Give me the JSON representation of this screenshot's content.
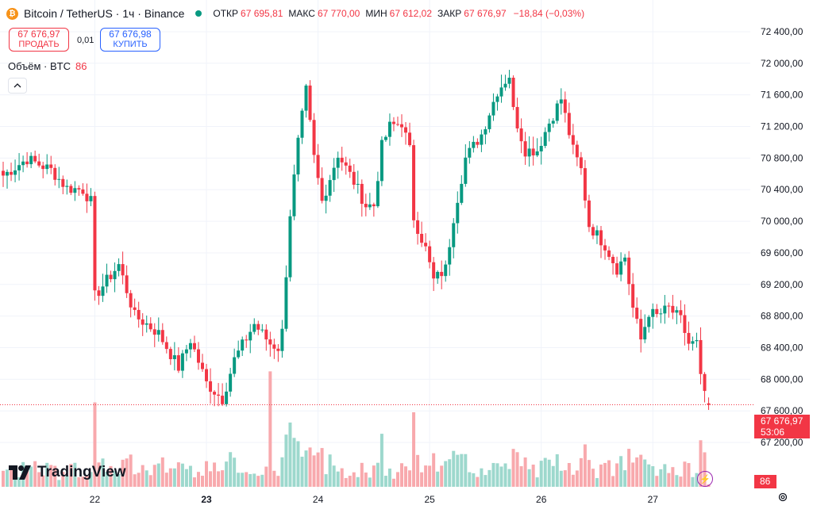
{
  "header": {
    "coin_symbol": "₿",
    "title": "Bitcoin / TetherUS · 1ч · Binance",
    "open_label": "ОТКР",
    "open": "67 695,81",
    "high_label": "МАКС",
    "high": "67 770,00",
    "low_label": "МИН",
    "low": "67 612,02",
    "close_label": "ЗАКР",
    "close": "67 676,97",
    "change": "−18,84 (−0,03%)"
  },
  "trade": {
    "sell_price": "67 676,97",
    "sell_label": "ПРОДАТЬ",
    "spread": "0,01",
    "buy_price": "67 676,98",
    "buy_label": "КУПИТЬ"
  },
  "volume_indicator": {
    "label": "Объём · BTC",
    "value": "86"
  },
  "brand": {
    "name": "TradingView"
  },
  "price_badge": {
    "price": "67 676,97",
    "countdown": "53:06"
  },
  "volume_badge": "86",
  "colors": {
    "up": "#089981",
    "down": "#f23645",
    "up_vol": "#9dd8cd",
    "down_vol": "#f8a9ad",
    "grid": "#f0f3fa"
  },
  "icons": {
    "collapse": "chevron-up-icon",
    "flash": "lightning-icon",
    "settings": "gear-icon"
  },
  "chart_data": {
    "type": "candlestick",
    "timeframe": "1h",
    "yaxis_ticks": [
      67200,
      67600,
      68000,
      68400,
      68800,
      69200,
      69600,
      70000,
      70400,
      70800,
      71200,
      71600,
      72000,
      72400
    ],
    "yaxis_tick_labels": [
      "67 200,00",
      "67 600,00",
      "68 000,00",
      "68 400,00",
      "68 800,00",
      "69 200,00",
      "69 600,00",
      "70 000,00",
      "70 400,00",
      "70 800,00",
      "71 200,00",
      "71 600,00",
      "72 000,00",
      "72 400,00"
    ],
    "ylim": [
      66950,
      72560
    ],
    "xaxis_labels": [
      "22",
      "23",
      "24",
      "25",
      "26",
      "27"
    ],
    "xaxis_label_bold": [
      false,
      true,
      false,
      false,
      false,
      false
    ],
    "waypoints": [
      [
        0,
        70580
      ],
      [
        6,
        70790
      ],
      [
        12,
        70650
      ],
      [
        16,
        70420
      ],
      [
        20,
        70400
      ],
      [
        22,
        70250
      ],
      [
        23,
        69050
      ],
      [
        26,
        69250
      ],
      [
        29,
        69450
      ],
      [
        33,
        68800
      ],
      [
        36,
        68700
      ],
      [
        39,
        68580
      ],
      [
        44,
        68150
      ],
      [
        47,
        68500
      ],
      [
        51,
        67950
      ],
      [
        55,
        67750
      ],
      [
        58,
        68250
      ],
      [
        63,
        68700
      ],
      [
        67,
        68450
      ],
      [
        69,
        68400
      ],
      [
        70,
        68600
      ],
      [
        72,
        70100
      ],
      [
        74,
        71000
      ],
      [
        76,
        71650
      ],
      [
        78,
        70800
      ],
      [
        80,
        70250
      ],
      [
        84,
        70850
      ],
      [
        88,
        70500
      ],
      [
        91,
        70200
      ],
      [
        93,
        70200
      ],
      [
        95,
        70950
      ],
      [
        97,
        71200
      ],
      [
        100,
        71250
      ],
      [
        102,
        70900
      ],
      [
        103,
        70050
      ],
      [
        106,
        69650
      ],
      [
        108,
        69250
      ],
      [
        111,
        69400
      ],
      [
        113,
        70050
      ],
      [
        116,
        70800
      ],
      [
        120,
        71100
      ],
      [
        124,
        71650
      ],
      [
        127,
        71850
      ],
      [
        128,
        71400
      ],
      [
        131,
        70900
      ],
      [
        134,
        70900
      ],
      [
        137,
        71250
      ],
      [
        140,
        71550
      ],
      [
        143,
        70900
      ],
      [
        145,
        70650
      ],
      [
        147,
        69950
      ],
      [
        151,
        69700
      ],
      [
        154,
        69400
      ],
      [
        156,
        69550
      ],
      [
        158,
        68900
      ],
      [
        160,
        68500
      ],
      [
        162,
        68850
      ],
      [
        164,
        68800
      ],
      [
        167,
        68900
      ],
      [
        170,
        68750
      ],
      [
        172,
        68450
      ],
      [
        174,
        68450
      ],
      [
        175,
        68000
      ],
      [
        177,
        67690
      ]
    ],
    "candles": 178,
    "last_close": 67676.97,
    "last_open": 67695.81,
    "last_high": 67770.0,
    "last_low": 67612.02,
    "volume_last": 86
  }
}
